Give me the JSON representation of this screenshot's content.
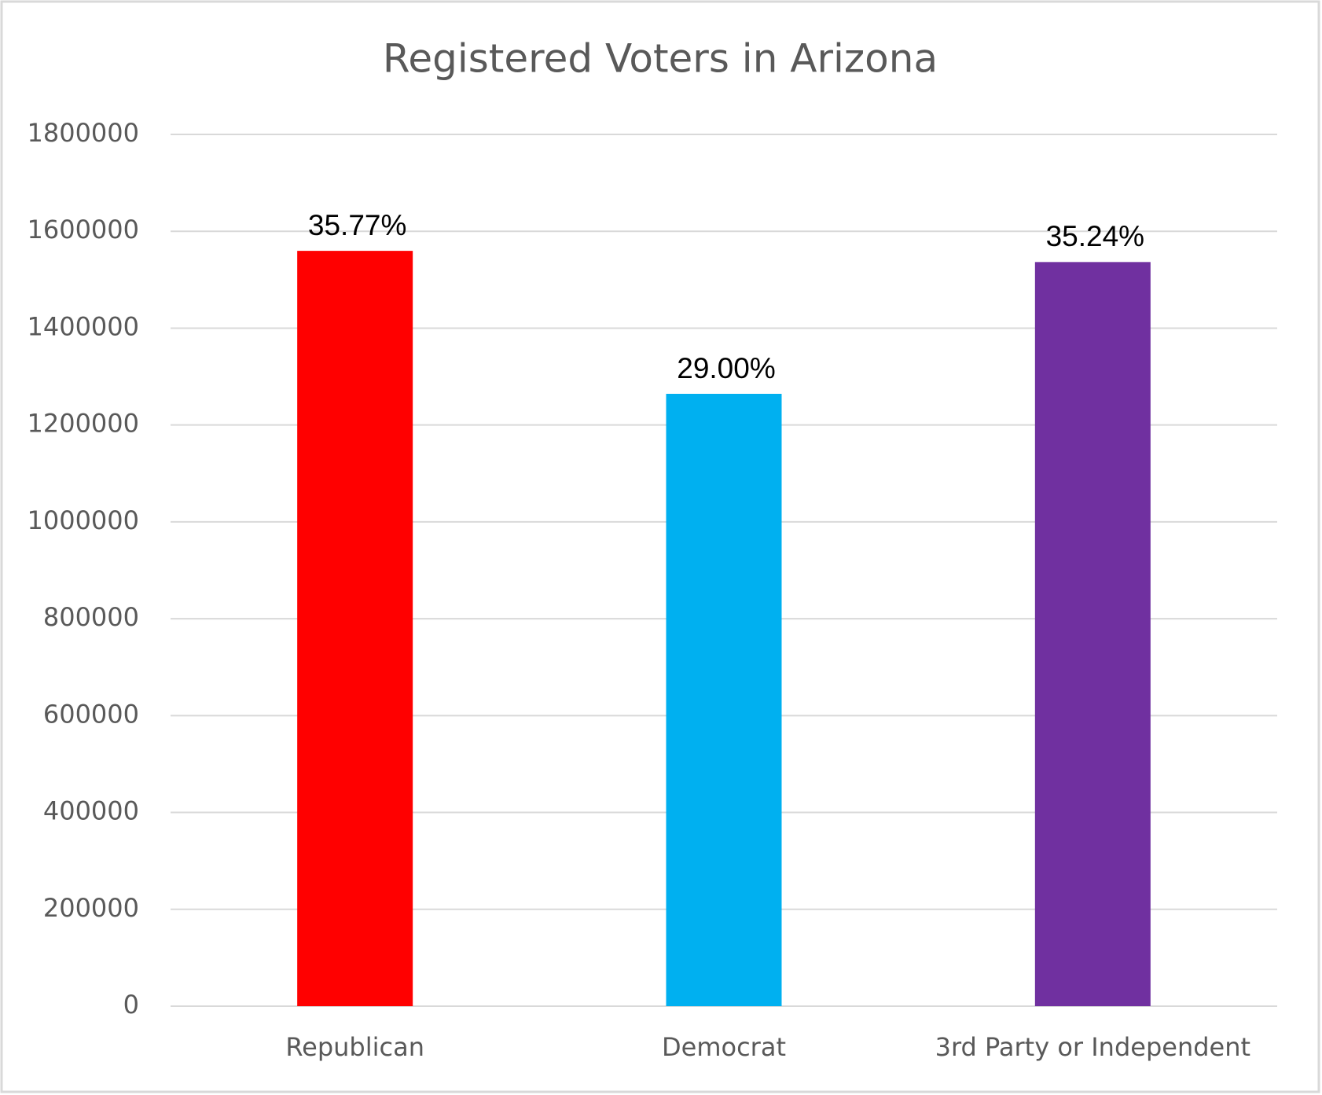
{
  "chart_data": {
    "type": "bar",
    "title": "Registered Voters in Arizona",
    "categories": [
      "Republican",
      "Democrat",
      "3rd Party or Independent"
    ],
    "values": [
      1559600,
      1264400,
      1536500
    ],
    "value_labels": [
      "35.77%",
      "29.00%",
      "35.24%"
    ],
    "colors": [
      "#ff0000",
      "#00b0f0",
      "#7030a0"
    ],
    "ylim": [
      0,
      1800000
    ],
    "yticks": [
      0,
      200000,
      400000,
      600000,
      800000,
      1000000,
      1200000,
      1400000,
      1600000,
      1800000
    ],
    "grid": true
  }
}
